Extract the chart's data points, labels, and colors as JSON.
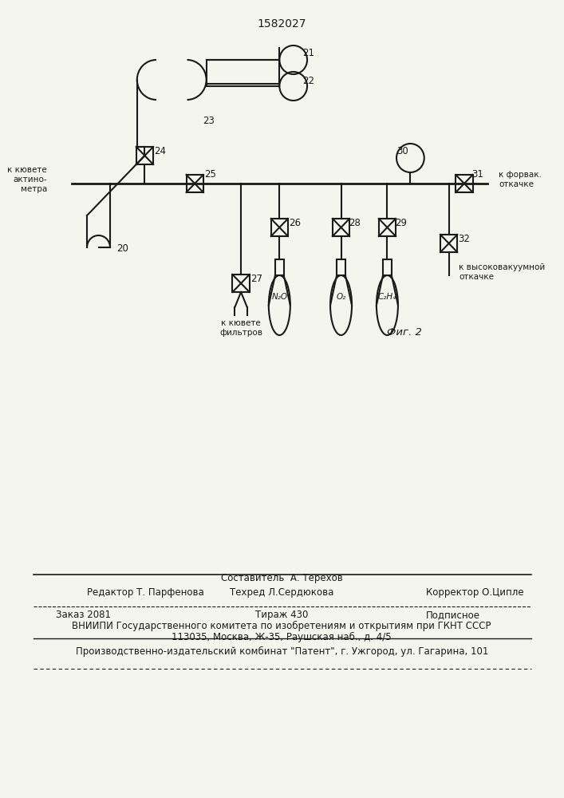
{
  "title": "1582027",
  "bg_color": "#f5f5f0",
  "line_color": "#1a1a1a",
  "fig_caption": "Фиг. 2",
  "footer_line1": "Составитель  А. Терехов",
  "footer_line2_left": "Редактор Т. Парфенова",
  "footer_line2_mid": "Техред Л.Сердюкова",
  "footer_line2_right": "Корректор О.Ципле",
  "footer_line3_left": "Заказ 2081",
  "footer_line3_mid": "Тираж 430",
  "footer_line3_right": "Подписное",
  "footer_line4": "ВНИИПИ Государственного комитета по изобретениям и открытиям при ГКНТ СССР",
  "footer_line5": "113035, Москва, Ж-35, Раушская наб., д. 4/5",
  "footer_line6": "Производственно-издательский комбинат \"Патент\", г. Ужгород, ул. Гагарина, 101"
}
